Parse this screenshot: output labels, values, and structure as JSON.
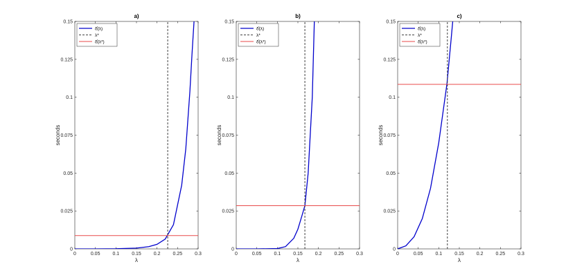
{
  "figure": {
    "xlabel": "λ",
    "ylabel": "seconds"
  },
  "legend_labels": [
    "δ̂(λ)",
    "λ*",
    "δ̂(λ*)"
  ],
  "colors": {
    "curve": "#0000cc",
    "hline": "#e84a4a",
    "vline": "#404040"
  },
  "chart_data": [
    {
      "type": "line",
      "title": "a)",
      "xlabel": "λ",
      "ylabel": "seconds",
      "xlim": [
        0,
        0.3
      ],
      "ylim": [
        0,
        0.15
      ],
      "xticks": [
        "0",
        "0.05",
        "0.1",
        "0.15",
        "0.2",
        "0.25",
        "0.3"
      ],
      "yticks": [
        "0",
        "0.025",
        "0.05",
        "0.075",
        "0.1",
        "0.125",
        "0.15"
      ],
      "legend_position": "top-left",
      "series": [
        {
          "name": "δ̂(λ)",
          "style": "solid-blue",
          "x": [
            0,
            0.05,
            0.1,
            0.15,
            0.18,
            0.2,
            0.22,
            0.24,
            0.26,
            0.27,
            0.28,
            0.285,
            0.29
          ],
          "y": [
            0,
            0,
            0.0001,
            0.0005,
            0.0015,
            0.003,
            0.0065,
            0.016,
            0.042,
            0.066,
            0.104,
            0.128,
            0.15
          ]
        },
        {
          "name": "λ*",
          "style": "dashed-black",
          "x": [
            0.226,
            0.226
          ],
          "y": [
            0,
            0.15
          ]
        },
        {
          "name": "δ̂(λ*)",
          "style": "solid-red",
          "x": [
            0,
            0.3
          ],
          "y": [
            0.0088,
            0.0088
          ]
        }
      ]
    },
    {
      "type": "line",
      "title": "b)",
      "xlabel": "λ",
      "ylabel": "seconds",
      "xlim": [
        0,
        0.3
      ],
      "ylim": [
        0,
        0.15
      ],
      "xticks": [
        "0",
        "0.05",
        "0.1",
        "0.15",
        "0.2",
        "0.25",
        "0.3"
      ],
      "yticks": [
        "0",
        "0.025",
        "0.05",
        "0.075",
        "0.1",
        "0.125",
        "0.15"
      ],
      "legend_position": "top-left",
      "series": [
        {
          "name": "δ̂(λ)",
          "style": "solid-blue",
          "x": [
            0,
            0.05,
            0.1,
            0.12,
            0.14,
            0.15,
            0.16,
            0.167,
            0.175,
            0.185,
            0.19
          ],
          "y": [
            0,
            0,
            0.0002,
            0.0015,
            0.007,
            0.013,
            0.022,
            0.0285,
            0.05,
            0.1,
            0.15
          ]
        },
        {
          "name": "λ*",
          "style": "dashed-black",
          "x": [
            0.167,
            0.167
          ],
          "y": [
            0,
            0.15
          ]
        },
        {
          "name": "δ̂(λ*)",
          "style": "solid-red",
          "x": [
            0,
            0.3
          ],
          "y": [
            0.0285,
            0.0285
          ]
        }
      ]
    },
    {
      "type": "line",
      "title": "c)",
      "xlabel": "λ",
      "ylabel": "seconds",
      "xlim": [
        0,
        0.3
      ],
      "ylim": [
        0,
        0.15
      ],
      "xticks": [
        "0",
        "0.05",
        "0.1",
        "0.15",
        "0.2",
        "0.25",
        "0.3"
      ],
      "yticks": [
        "0",
        "0.025",
        "0.05",
        "0.075",
        "0.1",
        "0.125",
        "0.15"
      ],
      "legend_position": "top-left",
      "series": [
        {
          "name": "δ̂(λ)",
          "style": "solid-blue",
          "x": [
            0,
            0.02,
            0.04,
            0.06,
            0.08,
            0.1,
            0.12,
            0.13,
            0.134
          ],
          "y": [
            0,
            0.002,
            0.008,
            0.02,
            0.04,
            0.07,
            0.109,
            0.138,
            0.15
          ]
        },
        {
          "name": "λ*",
          "style": "dashed-black",
          "x": [
            0.121,
            0.121
          ],
          "y": [
            0,
            0.15
          ]
        },
        {
          "name": "δ̂(λ*)",
          "style": "solid-red",
          "x": [
            0,
            0.3
          ],
          "y": [
            0.1085,
            0.1085
          ]
        }
      ]
    }
  ]
}
